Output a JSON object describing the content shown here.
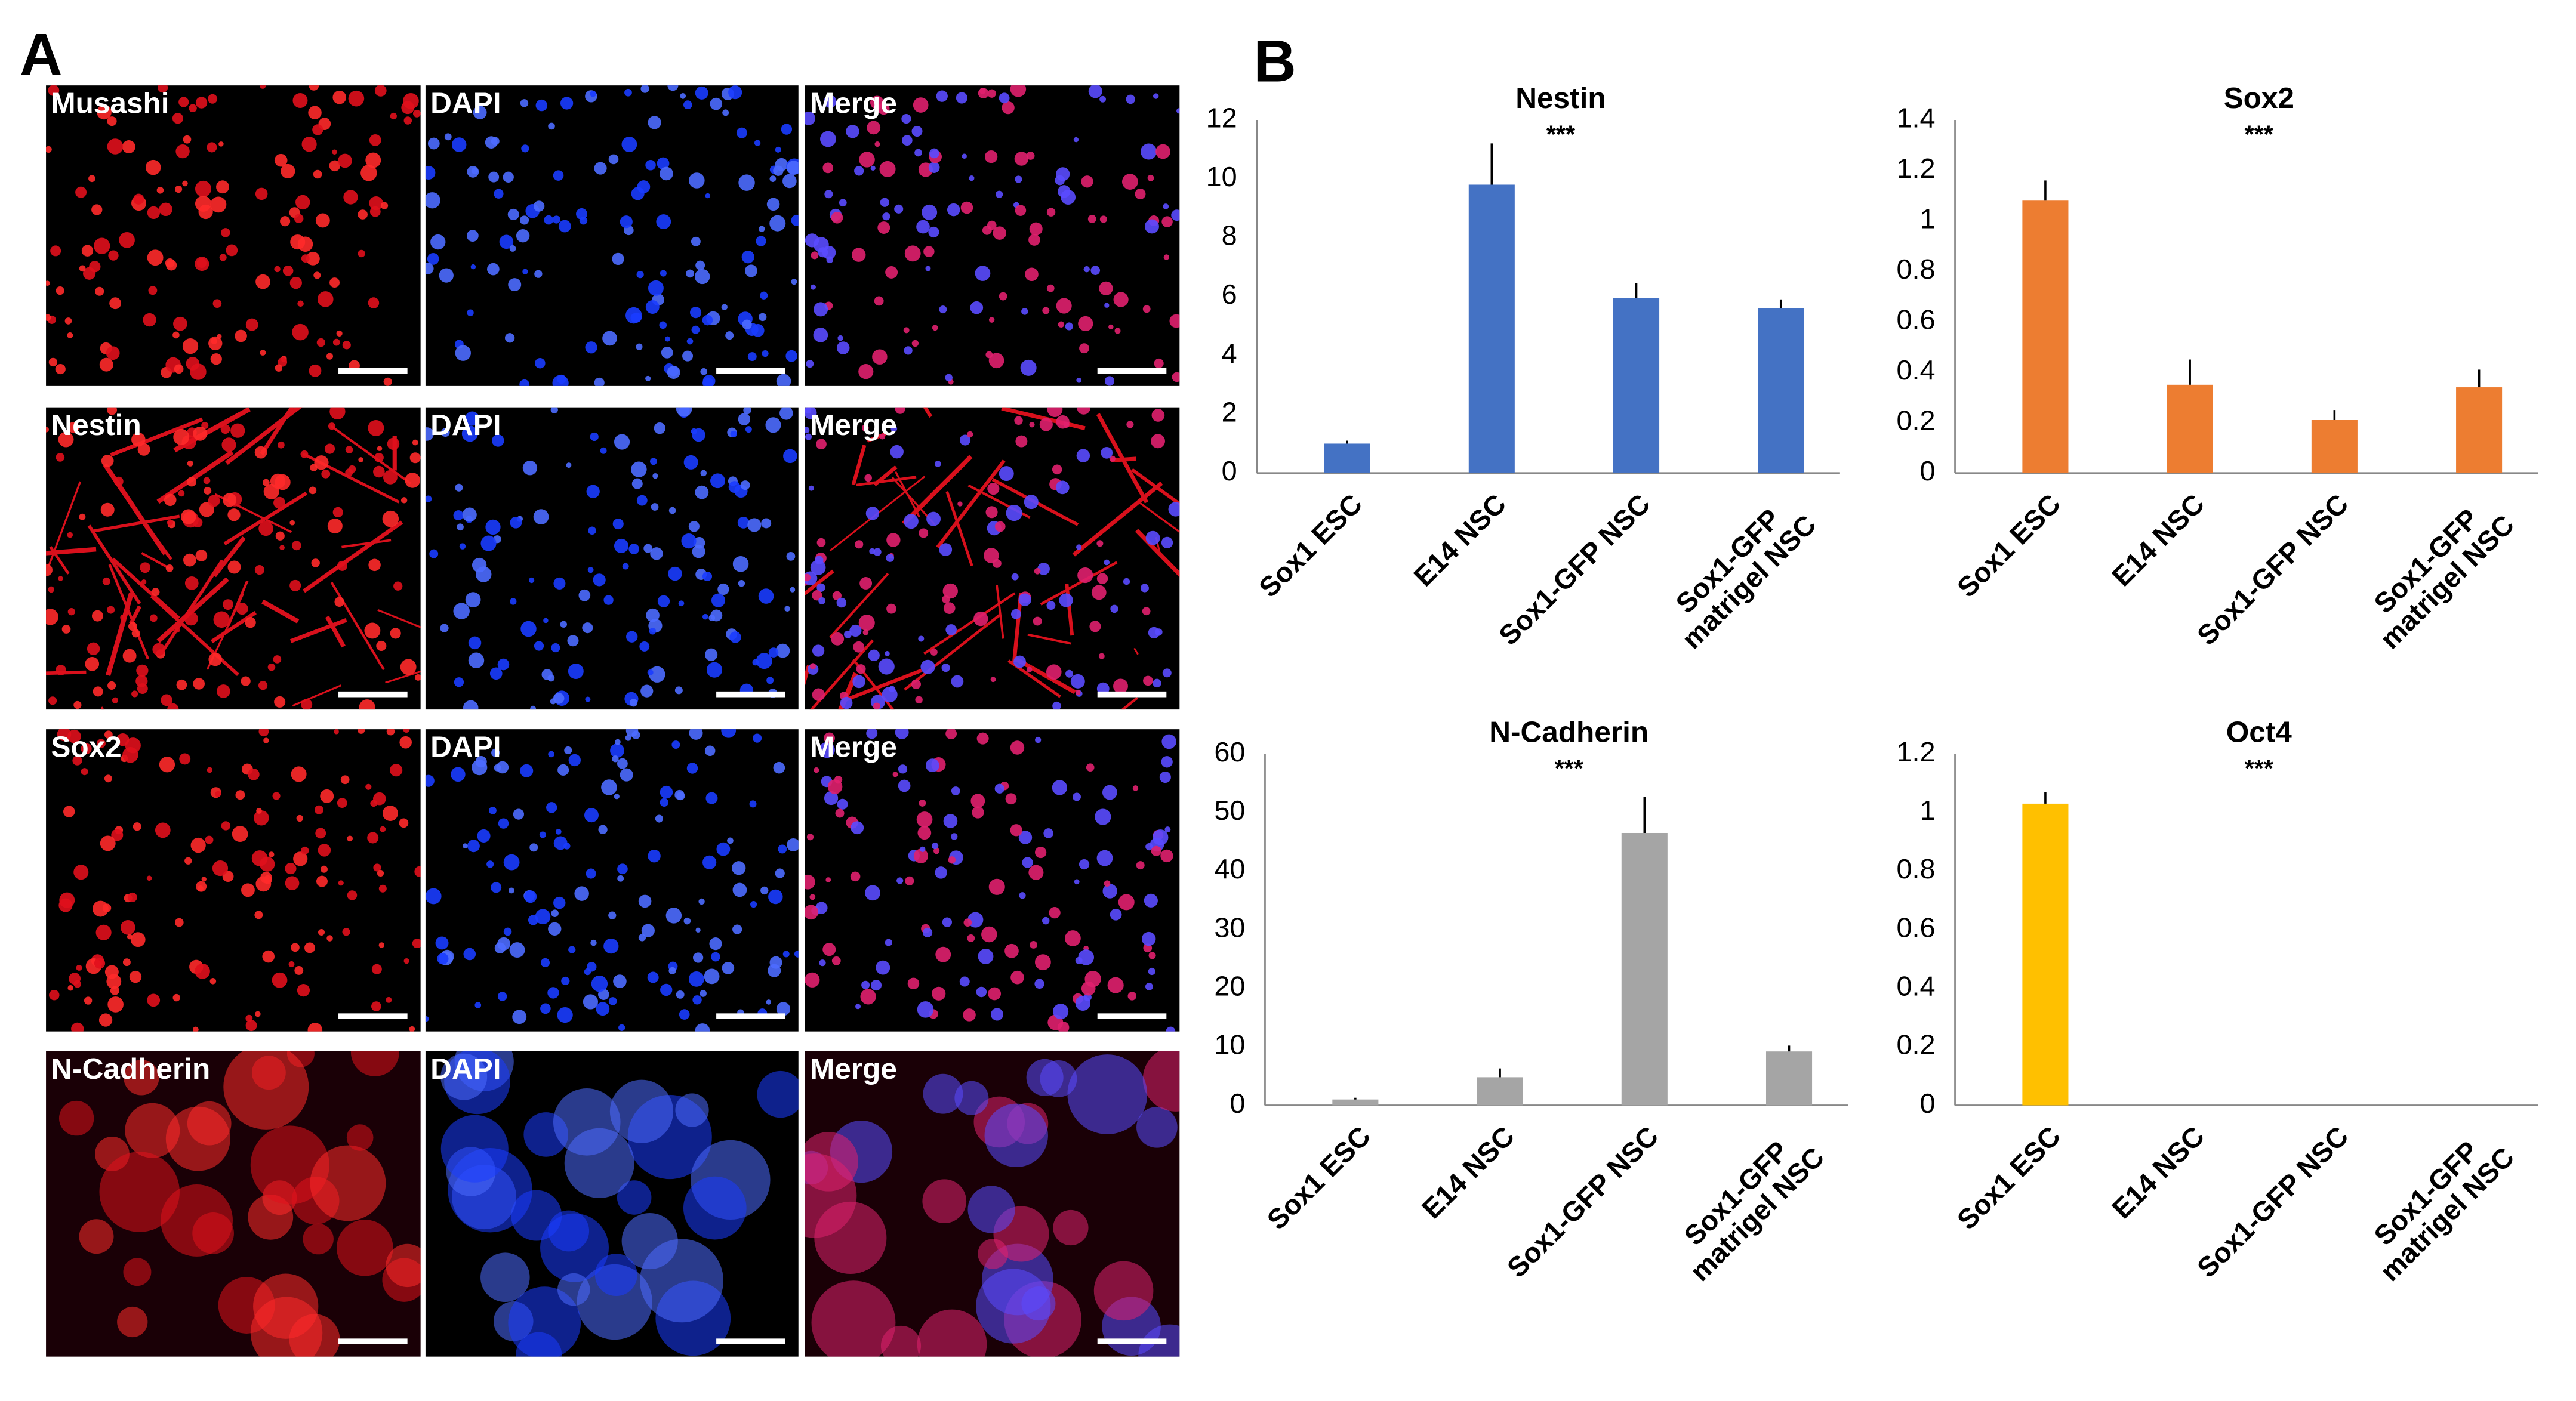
{
  "panel_a": {
    "label": "A",
    "rows": [
      {
        "stain": "Musashi",
        "dapi": "DAPI",
        "merge": "Merge"
      },
      {
        "stain": "Nestin",
        "dapi": "DAPI",
        "merge": "Merge"
      },
      {
        "stain": "Sox2",
        "dapi": "DAPI",
        "merge": "Merge"
      },
      {
        "stain": "N-Cadherin",
        "dapi": "DAPI",
        "merge": "Merge"
      }
    ]
  },
  "panel_b_label": "B",
  "chart_data": [
    {
      "type": "bar",
      "title": "Nestin",
      "annotation": "***",
      "categories": [
        "Sox1 ESC",
        "E14 NSC",
        "Sox1-GFP NSC",
        "Sox1-GFP\nmatrigel NSC"
      ],
      "values": [
        1.0,
        9.8,
        5.95,
        5.6
      ],
      "errors": [
        0.1,
        1.4,
        0.5,
        0.3
      ],
      "color": "#4472c4",
      "ylim": [
        0,
        12
      ],
      "yticks": [
        0,
        2,
        4,
        6,
        8,
        10,
        12
      ]
    },
    {
      "type": "bar",
      "title": "Sox2",
      "annotation": "***",
      "categories": [
        "Sox1 ESC",
        "E14 NSC",
        "Sox1-GFP NSC",
        "Sox1-GFP\nmatrigel NSC"
      ],
      "values": [
        1.08,
        0.35,
        0.21,
        0.34
      ],
      "errors": [
        0.08,
        0.1,
        0.04,
        0.07
      ],
      "color": "#ed7d31",
      "ylim": [
        0,
        1.4
      ],
      "yticks": [
        0,
        0.2,
        0.4,
        0.6,
        0.8,
        1,
        1.2,
        1.4
      ]
    },
    {
      "type": "bar",
      "title": "N-Cadherin",
      "annotation": "***",
      "categories": [
        "Sox1 ESC",
        "E14 NSC",
        "Sox1-GFP NSC",
        "Sox1-GFP\nmatrigel NSC"
      ],
      "values": [
        1,
        4.8,
        46.5,
        9.2
      ],
      "errors": [
        0.3,
        1.5,
        6.2,
        1.0
      ],
      "color": "#a5a5a5",
      "ylim": [
        0,
        60
      ],
      "yticks": [
        0,
        10,
        20,
        30,
        40,
        50,
        60
      ]
    },
    {
      "type": "bar",
      "title": "Oct4",
      "annotation": "***",
      "categories": [
        "Sox1 ESC",
        "E14 NSC",
        "Sox1-GFP NSC",
        "Sox1-GFP\nmatrigel NSC"
      ],
      "values": [
        1.03,
        0,
        0,
        0
      ],
      "errors": [
        0.04,
        0,
        0,
        0
      ],
      "color": "#ffc000",
      "ylim": [
        0,
        1.2
      ],
      "yticks": [
        0,
        0.2,
        0.4,
        0.6,
        0.8,
        1,
        1.2
      ]
    }
  ]
}
